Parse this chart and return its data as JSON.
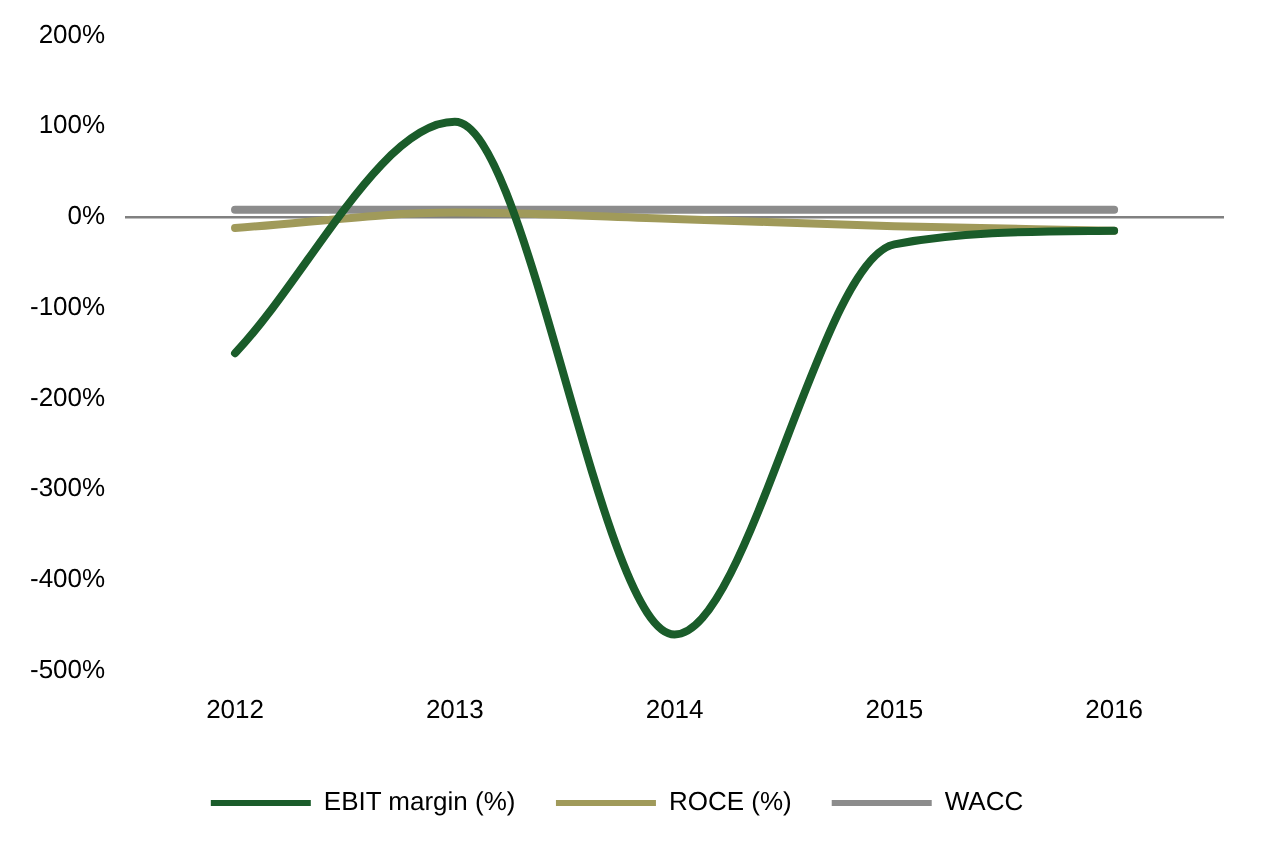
{
  "chart_data": {
    "type": "line",
    "categories": [
      "2012",
      "2013",
      "2014",
      "2015",
      "2016"
    ],
    "series": [
      {
        "name": "EBIT margin (%)",
        "color": "#1a5c2a",
        "values": [
          -150,
          105,
          -460,
          -30,
          -15
        ]
      },
      {
        "name": "ROCE (%)",
        "color": "#a09a5a",
        "values": [
          -12,
          5,
          -2,
          -10,
          -15
        ]
      },
      {
        "name": "WACC",
        "color": "#8c8c8c",
        "values": [
          8,
          8,
          8,
          8,
          8
        ]
      }
    ],
    "ylim": [
      -500,
      200
    ],
    "yticks": [
      {
        "value": -500,
        "label": "-500%"
      },
      {
        "value": -400,
        "label": "-400%"
      },
      {
        "value": -300,
        "label": "-300%"
      },
      {
        "value": -200,
        "label": "-200%"
      },
      {
        "value": -100,
        "label": "-100%"
      },
      {
        "value": 0,
        "label": "0%"
      },
      {
        "value": 100,
        "label": "100%"
      },
      {
        "value": 200,
        "label": "200%"
      }
    ],
    "grid": false,
    "legend": "bottom",
    "marker": "none",
    "line_style": "solid"
  }
}
